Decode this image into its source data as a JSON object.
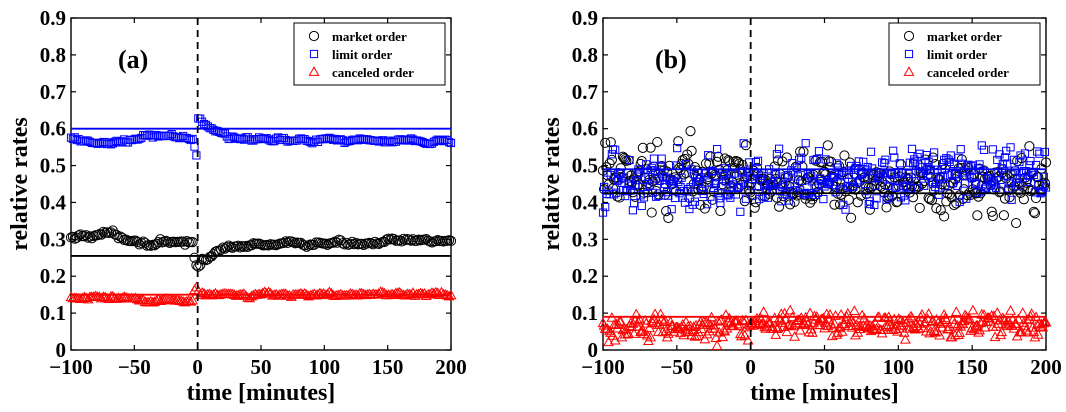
{
  "chart_data": [
    {
      "type": "scatter",
      "panel_label": "(a)",
      "xlabel": "time [minutes]",
      "ylabel": "relative rates",
      "xlim": [
        -100,
        200
      ],
      "ylim": [
        0,
        0.9
      ],
      "xticks": [
        "−100",
        "−50",
        "0",
        "50",
        "100",
        "150",
        "200"
      ],
      "yticks": [
        "0",
        "0.1",
        "0.2",
        "0.3",
        "0.4",
        "0.5",
        "0.6",
        "0.7",
        "0.8",
        "0.9"
      ],
      "event_line_x": 0,
      "legend_position": "top-right",
      "series": [
        {
          "name": "market order",
          "marker": "circle",
          "color": "#000000",
          "baseline": 0.255,
          "before_mean": 0.3,
          "before_jitter": 0.018,
          "before_trend": 0.015,
          "after_start": 0.24,
          "after_plateau": 0.28,
          "after_jitter": 0.014,
          "after_trend": 0.018,
          "dip": [
            0.25,
            0.23,
            0.225,
            0.23,
            0.24
          ]
        },
        {
          "name": "limit order",
          "marker": "square",
          "color": "#0000ff",
          "baseline": 0.6,
          "before_mean": 0.57,
          "before_jitter": 0.016,
          "before_trend": -0.01,
          "after_start": 0.62,
          "after_plateau": 0.575,
          "after_jitter": 0.014,
          "after_trend": -0.01,
          "dip": [
            0.55,
            0.53,
            0.625,
            0.63,
            0.615
          ]
        },
        {
          "name": "canceled order",
          "marker": "triangle",
          "color": "#ff0000",
          "baseline": 0.15,
          "before_mean": 0.138,
          "before_jitter": 0.012,
          "before_trend": 0.008,
          "after_start": 0.15,
          "after_plateau": 0.15,
          "after_jitter": 0.012,
          "after_trend": 0.0,
          "dip": [
            0.16,
            0.17,
            0.16,
            0.15,
            0.15
          ]
        }
      ]
    },
    {
      "type": "scatter",
      "panel_label": "(b)",
      "xlabel": "time [minutes]",
      "ylabel": "relative rates",
      "xlim": [
        -100,
        200
      ],
      "ylim": [
        0,
        0.9
      ],
      "xticks": [
        "−100",
        "−50",
        "0",
        "50",
        "100",
        "150",
        "200"
      ],
      "yticks": [
        "0",
        "0.1",
        "0.2",
        "0.3",
        "0.4",
        "0.5",
        "0.6",
        "0.7",
        "0.8",
        "0.9"
      ],
      "event_line_x": 0,
      "legend_position": "top-right",
      "series": [
        {
          "name": "market order",
          "marker": "circle",
          "color": "#000000",
          "baseline": 0.425,
          "before_mean": 0.47,
          "before_jitter": 0.09,
          "before_trend": 0.0,
          "after_start": 0.45,
          "after_plateau": 0.45,
          "after_jitter": 0.075,
          "after_trend": 0.0,
          "dip": []
        },
        {
          "name": "limit order",
          "marker": "square",
          "color": "#0000ff",
          "baseline": 0.49,
          "before_mean": 0.45,
          "before_jitter": 0.075,
          "before_trend": 0.0,
          "after_start": 0.47,
          "after_plateau": 0.47,
          "after_jitter": 0.07,
          "after_trend": 0.0,
          "dip": []
        },
        {
          "name": "canceled order",
          "marker": "triangle",
          "color": "#ff0000",
          "baseline": 0.09,
          "before_mean": 0.06,
          "before_jitter": 0.035,
          "before_trend": 0.0,
          "after_start": 0.07,
          "after_plateau": 0.07,
          "after_jitter": 0.035,
          "after_trend": 0.0,
          "dip": []
        }
      ]
    }
  ]
}
